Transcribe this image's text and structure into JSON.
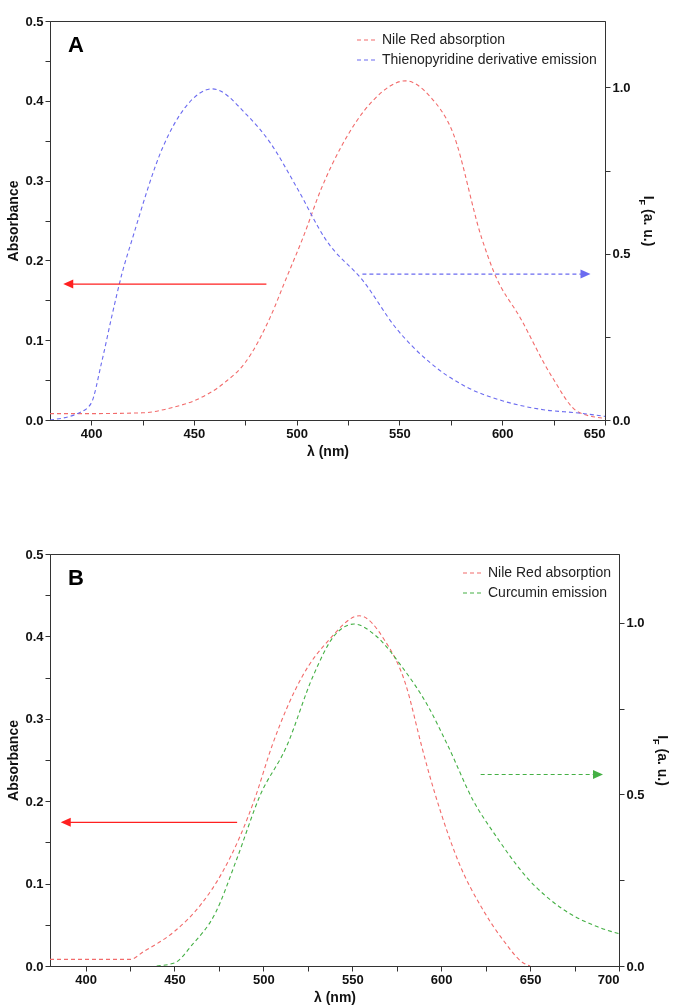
{
  "chart_data": [
    {
      "type": "line",
      "title": "A",
      "xlabel": "λ (nm)",
      "ylabel": "Absorbance",
      "y2label": "I$_{F}$ (a. u.)",
      "line_style": "dashed",
      "legend": "top right",
      "xlim": [
        380,
        650
      ],
      "xticks": [
        400,
        {
          "value": 425,
          "label": null
        },
        450,
        {
          "value": 475,
          "label": null
        },
        500,
        {
          "value": 525,
          "label": null
        },
        550,
        {
          "value": 575,
          "label": null
        },
        600,
        {
          "value": 625,
          "label": null
        },
        650
      ],
      "ylim": [
        0,
        0.5
      ],
      "yticks": [
        {
          "value": 0,
          "label": "0.0"
        },
        {
          "value": 0.05,
          "label": null
        },
        0.1,
        {
          "value": 0.15,
          "label": null
        },
        0.2,
        {
          "value": 0.25,
          "label": null
        },
        0.3,
        {
          "value": 0.35,
          "label": null
        },
        0.4,
        {
          "value": 0.45,
          "label": null
        },
        0.5
      ],
      "y2lim": [
        0,
        1.2
      ],
      "y2ticks": [
        {
          "value": 0,
          "label": "0.0"
        },
        {
          "value": 0.25,
          "label": null
        },
        0.5,
        {
          "value": 0.75,
          "label": null
        },
        {
          "value": 1,
          "label": "1.0"
        }
      ],
      "series": [
        {
          "name": "Nile Red absorption",
          "color": "#f26b6b",
          "x": [
            380,
            400,
            425,
            440,
            450,
            465,
            475,
            487,
            495,
            503,
            512,
            522,
            537,
            553,
            565,
            576,
            590,
            596,
            609,
            624,
            637,
            650
          ],
          "values": [
            0.008,
            0.008,
            0.009,
            0.016,
            0.024,
            0.047,
            0.072,
            0.128,
            0.178,
            0.228,
            0.29,
            0.344,
            0.4,
            0.425,
            0.405,
            0.36,
            0.228,
            0.185,
            0.127,
            0.055,
            0.01,
            0.002
          ]
        },
        {
          "name": "Thienopyridine derivative emission",
          "color": "#6b6bf0",
          "axis": "y2",
          "x": [
            380,
            395,
            400,
            405,
            410,
            415,
            420,
            435,
            446,
            459,
            476,
            487,
            500,
            514,
            533,
            548,
            565,
            583,
            600,
            620,
            637,
            650
          ],
          "values": [
            0,
            0.024,
            0.05,
            0.17,
            0.31,
            0.44,
            0.544,
            0.822,
            0.942,
            0.996,
            0.916,
            0.835,
            0.7,
            0.544,
            0.413,
            0.279,
            0.172,
            0.098,
            0.058,
            0.031,
            0.021,
            0.011
          ]
        }
      ]
    },
    {
      "type": "line",
      "title": "B",
      "xlabel": "λ (nm)",
      "ylabel": "Absorbance",
      "y2label": "I$_{F}$ (a. u.)",
      "line_style": "dashed",
      "legend": "top right",
      "xlim": [
        380,
        700
      ],
      "xticks": [
        400,
        {
          "value": 425,
          "label": null
        },
        450,
        {
          "value": 475,
          "label": null
        },
        500,
        {
          "value": 525,
          "label": null
        },
        550,
        {
          "value": 575,
          "label": null
        },
        600,
        {
          "value": 625,
          "label": null
        },
        650,
        {
          "value": 675,
          "label": null
        },
        700
      ],
      "ylim": [
        0,
        0.5
      ],
      "yticks": [
        {
          "value": 0,
          "label": "0.0"
        },
        {
          "value": 0.05,
          "label": null
        },
        0.1,
        {
          "value": 0.15,
          "label": null
        },
        0.2,
        {
          "value": 0.25,
          "label": null
        },
        0.3,
        {
          "value": 0.35,
          "label": null
        },
        0.4,
        {
          "value": 0.45,
          "label": null
        },
        0.5
      ],
      "y2lim": [
        0,
        1.2
      ],
      "y2ticks": [
        {
          "value": 0,
          "label": "0.0"
        },
        {
          "value": 0.25,
          "label": null
        },
        0.5,
        {
          "value": 0.75,
          "label": null
        },
        {
          "value": 1,
          "label": "1.0"
        }
      ],
      "series": [
        {
          "name": "Nile Red absorption",
          "color": "#f26b6b",
          "x": [
            380,
            425,
            433,
            450,
            465,
            477,
            487,
            495,
            505,
            522,
            537,
            554,
            568,
            580,
            589,
            593,
            600,
            610,
            623,
            635,
            646,
            650
          ],
          "values": [
            0.008,
            0.008,
            0.018,
            0.042,
            0.075,
            0.114,
            0.158,
            0.202,
            0.268,
            0.352,
            0.396,
            0.425,
            0.396,
            0.342,
            0.267,
            0.235,
            0.185,
            0.125,
            0.07,
            0.031,
            0.004,
            0
          ]
        },
        {
          "name": "Curcumin emission",
          "color": "#45b045",
          "axis": "y2",
          "x": [
            440,
            450,
            460,
            473,
            485,
            498,
            513,
            528,
            540,
            551,
            563,
            578,
            593,
            604,
            618,
            631,
            648,
            668,
            688,
            700
          ],
          "values": [
            0,
            0.009,
            0.062,
            0.154,
            0.311,
            0.495,
            0.639,
            0.845,
            0.963,
            0.996,
            0.963,
            0.871,
            0.753,
            0.639,
            0.482,
            0.377,
            0.259,
            0.167,
            0.114,
            0.094
          ]
        }
      ]
    }
  ]
}
